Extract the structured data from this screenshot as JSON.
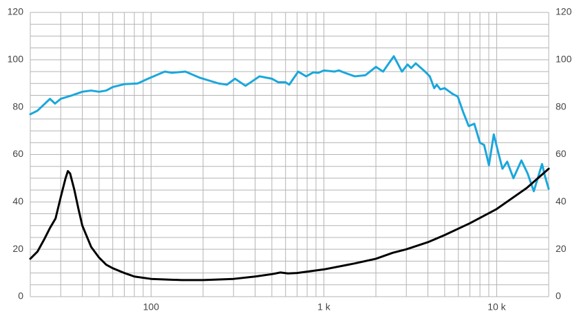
{
  "chart_data": {
    "type": "line",
    "xscale": "log",
    "xlim": [
      20,
      20000
    ],
    "xticks": [
      100,
      {
        "value": 1000,
        "label": "1 k"
      },
      {
        "value": 10000,
        "label": "10 k"
      }
    ],
    "xgrid": [
      20,
      30,
      40,
      50,
      60,
      70,
      80,
      90,
      100,
      200,
      300,
      400,
      500,
      600,
      700,
      800,
      900,
      1000,
      2000,
      3000,
      4000,
      5000,
      6000,
      7000,
      8000,
      9000,
      10000,
      20000
    ],
    "ylim": [
      0,
      120
    ],
    "yticks": [
      0,
      20,
      40,
      60,
      80,
      100,
      120
    ],
    "ygrid": [
      0,
      5,
      10,
      15,
      20,
      25,
      30,
      35,
      40,
      45,
      50,
      55,
      60,
      65,
      70,
      75,
      80,
      85,
      90,
      95,
      100,
      105,
      110,
      115,
      120
    ],
    "y2lim": [
      0,
      120
    ],
    "y2ticks": [
      0,
      20,
      40,
      60,
      80,
      100,
      120
    ],
    "grid": true,
    "series": [
      {
        "color": "#1aa7dc",
        "x": [
          20,
          22,
          26,
          27.8,
          30,
          35,
          40,
          45,
          50,
          55,
          60,
          70,
          83.6,
          96,
          120,
          132,
          158,
          190,
          246,
          275,
          306,
          352,
          424,
          500,
          545,
          600,
          630,
          710,
          790,
          870,
          930,
          1000,
          1150,
          1220,
          1320,
          1510,
          1740,
          2000,
          2200,
          2540,
          2830,
          3050,
          3200,
          3400,
          3850,
          4100,
          4350,
          4500,
          4720,
          5000,
          5580,
          5950,
          6390,
          6890,
          7420,
          8000,
          8460,
          9020,
          9620,
          10200,
          10800,
          11500,
          12500,
          13900,
          15100,
          16400,
          18300,
          19000,
          20000
        ],
        "values": [
          77,
          78.5,
          83.5,
          81.5,
          83.5,
          85,
          86.5,
          87,
          86.5,
          87,
          88.5,
          89.7,
          90,
          92,
          95,
          94.5,
          95,
          92.5,
          90,
          89.5,
          92,
          89,
          93,
          92,
          90.5,
          90.5,
          89.5,
          95,
          93,
          94.7,
          94.5,
          95.5,
          95,
          95.5,
          94.5,
          93,
          93.5,
          97,
          95,
          101.5,
          95,
          98,
          96.5,
          98.5,
          95,
          93,
          88,
          89.5,
          87.5,
          88,
          85.5,
          84.5,
          78,
          72,
          73,
          65,
          64,
          55.5,
          68.5,
          61,
          54,
          57,
          50,
          57.5,
          52,
          44.5,
          56,
          51,
          45.5
        ]
      },
      {
        "color": "#000000",
        "axis": "y2",
        "x": [
          20,
          22,
          24,
          26,
          28,
          30,
          32,
          33,
          34,
          36,
          38,
          40,
          45,
          50,
          55,
          60,
          70,
          80,
          100,
          150,
          200,
          300,
          400,
          500,
          560,
          620,
          700,
          1000,
          1500,
          2000,
          2500,
          3000,
          4000,
          5000,
          7000,
          10000,
          15000,
          20000
        ],
        "values": [
          16,
          19,
          24,
          29,
          33,
          42,
          50,
          53,
          52,
          45,
          37,
          30,
          21,
          16.5,
          13.5,
          12,
          10,
          8.5,
          7.5,
          7,
          7,
          7.5,
          8.5,
          9.5,
          10.2,
          9.8,
          10,
          11.5,
          14,
          16,
          18.5,
          20,
          23,
          26,
          31,
          37,
          46,
          54
        ]
      }
    ]
  }
}
